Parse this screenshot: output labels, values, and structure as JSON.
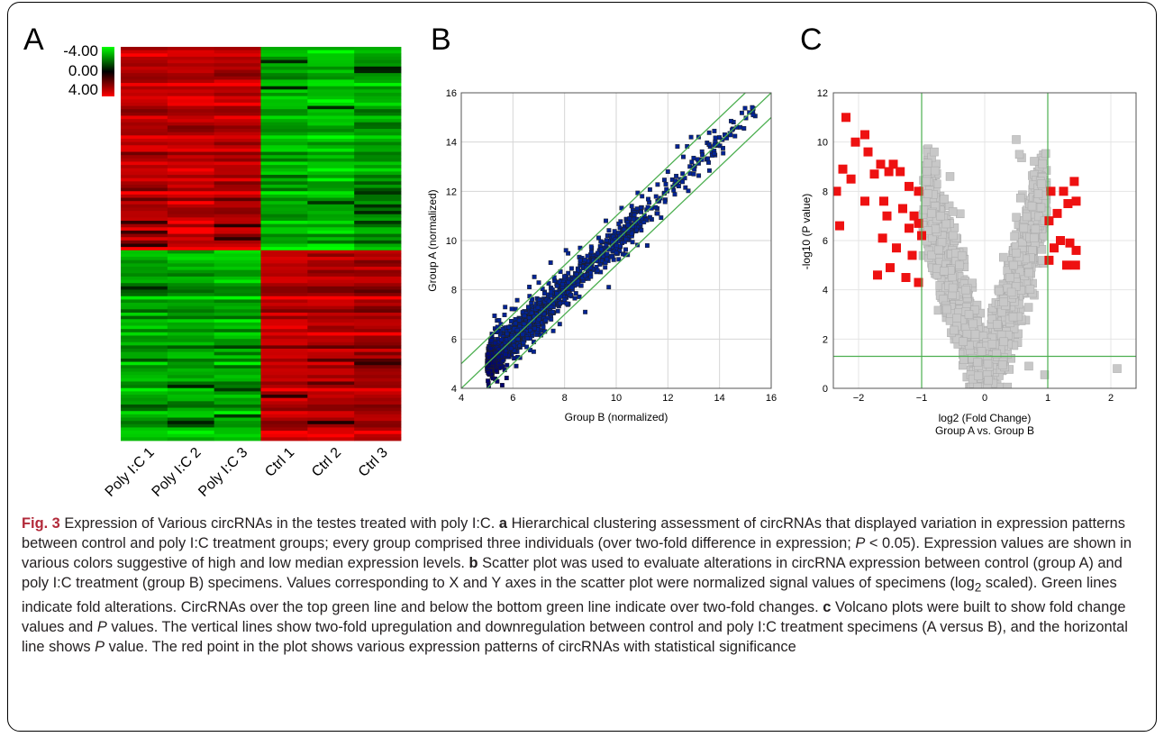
{
  "figure": {
    "panel_labels": [
      "A",
      "B",
      "C"
    ],
    "caption": {
      "fig_label": "Fig. 3",
      "title": "Expression of Various circRNAs in the testes treated with poly I:C.",
      "a_marker": "a",
      "a_text1": "Hierarchical clustering assessment of circRNAs that displayed variation in expression patterns between control and poly I:C treatment groups; every group comprised three individuals (over two-fold difference in expression; ",
      "a_p": "P",
      "a_text2": " < 0.05). Expression values are shown in various colors suggestive of high and low median expression levels.",
      "b_marker": "b",
      "b_text1": "Scatter plot was used to evaluate alterations in circRNA expression between control (group A) and poly I:C treatment (group B) specimens. Values corresponding to X and Y axes in the scatter plot were normalized signal values of specimens (log",
      "b_sub": "2",
      "b_text2": " scaled). Green lines indicate fold alterations. CircRNAs over the top green line and below the bottom green line indicate over two-fold changes.",
      "c_marker": "c",
      "c_text1": "Volcano plots were built to show fold change values and ",
      "c_p1": "P",
      "c_text2": " values. The vertical lines show two-fold upregulation and downregulation between control and poly I:C treatment specimens (A versus B), and the horizontal line shows ",
      "c_p2": "P",
      "c_text3": " value. The red point in the plot shows various expression patterns of circRNAs with statistical significance"
    }
  },
  "chart_data": [
    {
      "type": "heatmap",
      "panel": "A",
      "columns": [
        "Poly I:C 1",
        "Poly I:C 2",
        "Poly I:C 3",
        "Ctrl 1",
        "Ctrl 2",
        "Ctrl 3"
      ],
      "color_scale": {
        "min": -4.0,
        "mid": 0.0,
        "max": 4.0,
        "labels": [
          "-4.00",
          "0.00",
          "4.00"
        ],
        "colors": [
          "#00ff00",
          "#000000",
          "#ff0000"
        ]
      },
      "row_groups": [
        {
          "rows": 62,
          "pattern": [
            3.2,
            3.4,
            3.1,
            -3.0,
            -3.3,
            -2.8
          ],
          "direction": "up in Poly I:C"
        },
        {
          "rows": 58,
          "pattern": [
            -2.9,
            -3.0,
            -3.1,
            3.3,
            3.2,
            3.0
          ],
          "direction": "down in Poly I:C"
        }
      ]
    },
    {
      "type": "scatter",
      "panel": "B",
      "xlabel": "Group B (normalized)",
      "ylabel": "Group A (normalized)",
      "xlim": [
        4,
        16
      ],
      "ylim": [
        4,
        16
      ],
      "xticks": [
        4,
        6,
        8,
        10,
        12,
        14,
        16
      ],
      "yticks": [
        4,
        6,
        8,
        10,
        12,
        14,
        16
      ],
      "grid": true,
      "fold_lines": [
        {
          "intercept": 1
        },
        {
          "intercept": 0
        },
        {
          "intercept": -1
        }
      ],
      "point_cloud": {
        "x_range": [
          5.0,
          15.4
        ],
        "density": "dense near 5-8, sparse above 12",
        "color_scale": [
          "#000080",
          "#00bfff",
          "#ffff66",
          "#8b0000"
        ]
      },
      "sample_points": [
        [
          5.1,
          5.0
        ],
        [
          5.6,
          6.4
        ],
        [
          6.2,
          6.0
        ],
        [
          6.6,
          7.3
        ],
        [
          7.0,
          6.8
        ],
        [
          7.6,
          8.5
        ],
        [
          8.0,
          7.6
        ],
        [
          8.6,
          9.7
        ],
        [
          9.0,
          8.9
        ],
        [
          9.6,
          10.8
        ],
        [
          10.0,
          9.5
        ],
        [
          10.6,
          11.4
        ],
        [
          11.0,
          11.8
        ],
        [
          11.6,
          11.1
        ],
        [
          12.0,
          12.8
        ],
        [
          12.6,
          13.4
        ],
        [
          13.0,
          12.7
        ],
        [
          13.6,
          13.9
        ],
        [
          14.2,
          14.3
        ],
        [
          14.8,
          14.6
        ],
        [
          15.3,
          15.1
        ],
        [
          5.7,
          7.3
        ],
        [
          8.8,
          7.1
        ],
        [
          11.2,
          9.8
        ],
        [
          12.9,
          14.2
        ]
      ]
    },
    {
      "type": "scatter",
      "panel": "C",
      "xlabel": "log2 (Fold Change)",
      "xlabel_line2": "Group A vs. Group B",
      "ylabel": "-log10 (P value)",
      "xlim": [
        -2.4,
        2.4
      ],
      "ylim": [
        0,
        12
      ],
      "xticks": [
        -2,
        -1,
        0,
        1,
        2
      ],
      "yticks": [
        0,
        2,
        4,
        6,
        8,
        10,
        12
      ],
      "grid": true,
      "thresholds": {
        "fold_change": [
          -1,
          1
        ],
        "neg_log10_p": 1.3
      },
      "series": [
        {
          "name": "",
          "color": "#ee1111",
          "points": [
            [
              -2.2,
              11.0
            ],
            [
              -1.9,
              10.3
            ],
            [
              -2.05,
              10.0
            ],
            [
              -1.85,
              9.6
            ],
            [
              -2.25,
              8.9
            ],
            [
              -1.65,
              9.1
            ],
            [
              -2.35,
              8.0
            ],
            [
              -2.12,
              8.5
            ],
            [
              -1.75,
              8.7
            ],
            [
              -1.52,
              8.8
            ],
            [
              -1.45,
              9.1
            ],
            [
              -1.34,
              8.8
            ],
            [
              -1.2,
              8.2
            ],
            [
              -1.05,
              8.0
            ],
            [
              -1.9,
              7.6
            ],
            [
              -1.6,
              7.6
            ],
            [
              -1.3,
              7.3
            ],
            [
              -1.12,
              7.0
            ],
            [
              -1.55,
              7.0
            ],
            [
              -1.2,
              6.5
            ],
            [
              -2.3,
              6.6
            ],
            [
              -1.05,
              6.7
            ],
            [
              -1.0,
              6.2
            ],
            [
              -1.62,
              6.1
            ],
            [
              -1.4,
              5.7
            ],
            [
              -1.15,
              5.4
            ],
            [
              -1.5,
              4.9
            ],
            [
              -1.25,
              4.5
            ],
            [
              -1.05,
              4.3
            ],
            [
              -1.7,
              4.6
            ],
            [
              1.05,
              8.0
            ],
            [
              1.25,
              8.0
            ],
            [
              1.42,
              8.4
            ],
            [
              1.32,
              7.5
            ],
            [
              1.15,
              7.1
            ],
            [
              1.45,
              7.6
            ],
            [
              1.02,
              6.8
            ],
            [
              1.2,
              6.0
            ],
            [
              1.35,
              5.9
            ],
            [
              1.1,
              5.7
            ],
            [
              1.45,
              5.6
            ],
            [
              1.02,
              5.2
            ],
            [
              1.3,
              5.0
            ],
            [
              1.44,
              5.0
            ]
          ]
        },
        {
          "name": "",
          "color": "#c8c8c8",
          "points": [
            [
              -0.8,
              9.6
            ],
            [
              -0.55,
              8.6
            ],
            [
              0.5,
              10.1
            ],
            [
              0.55,
              9.5
            ],
            [
              0.9,
              8.3
            ],
            [
              -0.9,
              7.9
            ],
            [
              -0.7,
              7.0
            ],
            [
              -0.5,
              6.2
            ],
            [
              -0.4,
              5.0
            ],
            [
              -0.3,
              4.0
            ],
            [
              -0.25,
              3.0
            ],
            [
              -0.15,
              2.2
            ],
            [
              -0.05,
              1.5
            ],
            [
              0.05,
              1.0
            ],
            [
              0.12,
              1.8
            ],
            [
              0.2,
              2.6
            ],
            [
              0.3,
              3.5
            ],
            [
              0.4,
              4.5
            ],
            [
              0.5,
              5.5
            ],
            [
              0.62,
              6.5
            ],
            [
              0.75,
              7.4
            ],
            [
              0.85,
              7.9
            ],
            [
              -0.9,
              6.4
            ],
            [
              0.95,
              6.8
            ],
            [
              0.95,
              0.55
            ],
            [
              0.7,
              0.9
            ],
            [
              2.1,
              0.8
            ],
            [
              -0.6,
              3.2
            ],
            [
              0.45,
              2.9
            ],
            [
              -0.1,
              0.5
            ]
          ]
        }
      ]
    }
  ]
}
